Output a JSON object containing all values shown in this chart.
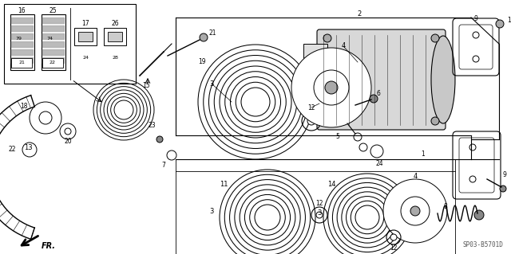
{
  "bg_color": "#ffffff",
  "line_color": "#000000",
  "fig_width": 6.4,
  "fig_height": 3.19,
  "dpi": 100,
  "diagram_code": "SP03-B5701D",
  "fr_label": "FR."
}
